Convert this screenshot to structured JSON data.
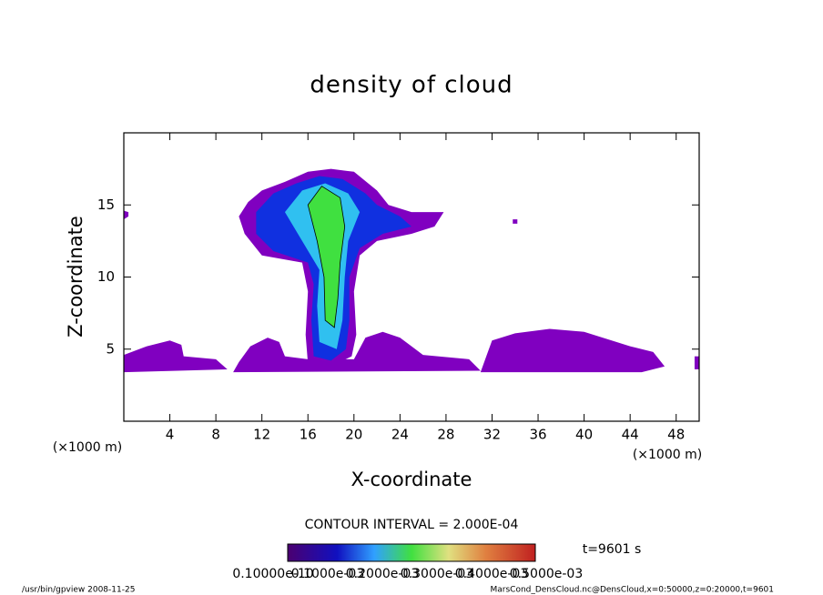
{
  "chart_data": {
    "type": "contour",
    "title": "density of cloud",
    "x_label": "X-coordinate",
    "y_label": "Z-coordinate",
    "x_unit_left": "(×1000 m)",
    "x_unit_right": "(×1000 m)",
    "xlim": [
      0,
      50
    ],
    "xticks": [
      4,
      8,
      12,
      16,
      20,
      24,
      28,
      32,
      36,
      40,
      44,
      48
    ],
    "ylim": [
      0,
      20
    ],
    "yticks": [
      5,
      10,
      15
    ],
    "regions": [
      {
        "color": "#8000c0",
        "points": [
          [
            0,
            3.4
          ],
          [
            0,
            4.6
          ],
          [
            2,
            5.2
          ],
          [
            4,
            5.6
          ],
          [
            5,
            5.3
          ],
          [
            5.2,
            4.5
          ],
          [
            8,
            4.3
          ],
          [
            9,
            3.6
          ]
        ]
      },
      {
        "color": "#8000c0",
        "points": [
          [
            9.5,
            3.4
          ],
          [
            10,
            4.1
          ],
          [
            11,
            5.2
          ],
          [
            12.5,
            5.8
          ],
          [
            13.5,
            5.5
          ],
          [
            14,
            4.5
          ],
          [
            16,
            4.3
          ],
          [
            20,
            4.3
          ],
          [
            21,
            5.8
          ],
          [
            22.5,
            6.2
          ],
          [
            24,
            5.8
          ],
          [
            26,
            4.6
          ],
          [
            30,
            4.3
          ],
          [
            31,
            3.5
          ]
        ]
      },
      {
        "color": "#8000c0",
        "points": [
          [
            31,
            3.4
          ],
          [
            31.5,
            4.5
          ],
          [
            32,
            5.6
          ],
          [
            34,
            6.1
          ],
          [
            37,
            6.4
          ],
          [
            40,
            6.2
          ],
          [
            44,
            5.2
          ],
          [
            46,
            4.8
          ],
          [
            47,
            3.8
          ],
          [
            45,
            3.4
          ]
        ]
      },
      {
        "color": "#8000c0",
        "points": [
          [
            49.6,
            3.6
          ],
          [
            49.6,
            4.5
          ],
          [
            50,
            4.5
          ],
          [
            50,
            3.6
          ]
        ]
      },
      {
        "color": "#8000c0",
        "points": [
          [
            0,
            14
          ],
          [
            0.4,
            14.2
          ],
          [
            0.4,
            14.5
          ],
          [
            0,
            14.6
          ]
        ]
      },
      {
        "color": "#8000c0",
        "points": [
          [
            33.8,
            13.7
          ],
          [
            34.2,
            13.7
          ],
          [
            34.2,
            14
          ],
          [
            33.8,
            14
          ]
        ]
      },
      {
        "color": "#8000c0",
        "points": [
          [
            16,
            4
          ],
          [
            15.8,
            6
          ],
          [
            16,
            9
          ],
          [
            15.5,
            11
          ],
          [
            12,
            11.5
          ],
          [
            10.5,
            13
          ],
          [
            10,
            14.2
          ],
          [
            10.8,
            15.2
          ],
          [
            12,
            16
          ],
          [
            14,
            16.6
          ],
          [
            16,
            17.3
          ],
          [
            18,
            17.5
          ],
          [
            20,
            17.3
          ],
          [
            22,
            16
          ],
          [
            23,
            15
          ],
          [
            25,
            14.5
          ],
          [
            27.8,
            14.5
          ],
          [
            27,
            13.5
          ],
          [
            25,
            13
          ],
          [
            22,
            12.5
          ],
          [
            20.5,
            11.5
          ],
          [
            20,
            9
          ],
          [
            20.2,
            6
          ],
          [
            19.8,
            4.5
          ],
          [
            18,
            3.8
          ]
        ]
      },
      {
        "color": "#1030e0",
        "points": [
          [
            16.5,
            4.5
          ],
          [
            16.3,
            7
          ],
          [
            16.5,
            9.5
          ],
          [
            16,
            11
          ],
          [
            13,
            11.8
          ],
          [
            11.5,
            13
          ],
          [
            11.5,
            14.5
          ],
          [
            13,
            15.8
          ],
          [
            15,
            16.5
          ],
          [
            17,
            17
          ],
          [
            19,
            16.8
          ],
          [
            21,
            15.8
          ],
          [
            22,
            15
          ],
          [
            24,
            14.2
          ],
          [
            25,
            13.5
          ],
          [
            22.5,
            13
          ],
          [
            20.5,
            12
          ],
          [
            19.6,
            10
          ],
          [
            19.6,
            7
          ],
          [
            19.3,
            5
          ],
          [
            18,
            4.2
          ]
        ]
      },
      {
        "color": "#30c0f0",
        "points": [
          [
            17,
            5.5
          ],
          [
            16.8,
            8
          ],
          [
            17,
            10.5
          ],
          [
            15.5,
            12.5
          ],
          [
            14,
            14.5
          ],
          [
            15.5,
            16
          ],
          [
            17.5,
            16.5
          ],
          [
            19.5,
            15.8
          ],
          [
            20.5,
            14.5
          ],
          [
            19.5,
            12.5
          ],
          [
            19.2,
            10
          ],
          [
            19,
            7
          ],
          [
            18.5,
            5
          ]
        ]
      },
      {
        "color": "#40e040",
        "points": [
          [
            17.5,
            7
          ],
          [
            17.4,
            10
          ],
          [
            16.8,
            12.5
          ],
          [
            16,
            15
          ],
          [
            17.2,
            16.3
          ],
          [
            18.8,
            15.5
          ],
          [
            19.2,
            13.5
          ],
          [
            18.8,
            11
          ],
          [
            18.6,
            8.5
          ],
          [
            18.3,
            6.5
          ]
        ]
      }
    ],
    "colorbar_ticks": [
      {
        "value": 1e-11,
        "label": "0.10000e-10"
      },
      {
        "value": 0.0001,
        "label": "0.1000e-03"
      },
      {
        "value": 0.0002,
        "label": "0.2000e-03"
      },
      {
        "value": 0.0003,
        "label": "0.3000e-03"
      },
      {
        "value": 0.0004,
        "label": "0.4000e-03"
      },
      {
        "value": 0.0005,
        "label": "0.5000e-03"
      }
    ],
    "clim": [
      0,
      0.0005
    ],
    "contour_interval": "CONTOUR INTERVAL = 2.000E-04",
    "time_label": "t=9601 s"
  },
  "footer": {
    "left": "/usr/bin/gpview   2008-11-25",
    "right": "MarsCond_DensCloud.nc@DensCloud,x=0:50000,z=0:20000,t=9601"
  }
}
